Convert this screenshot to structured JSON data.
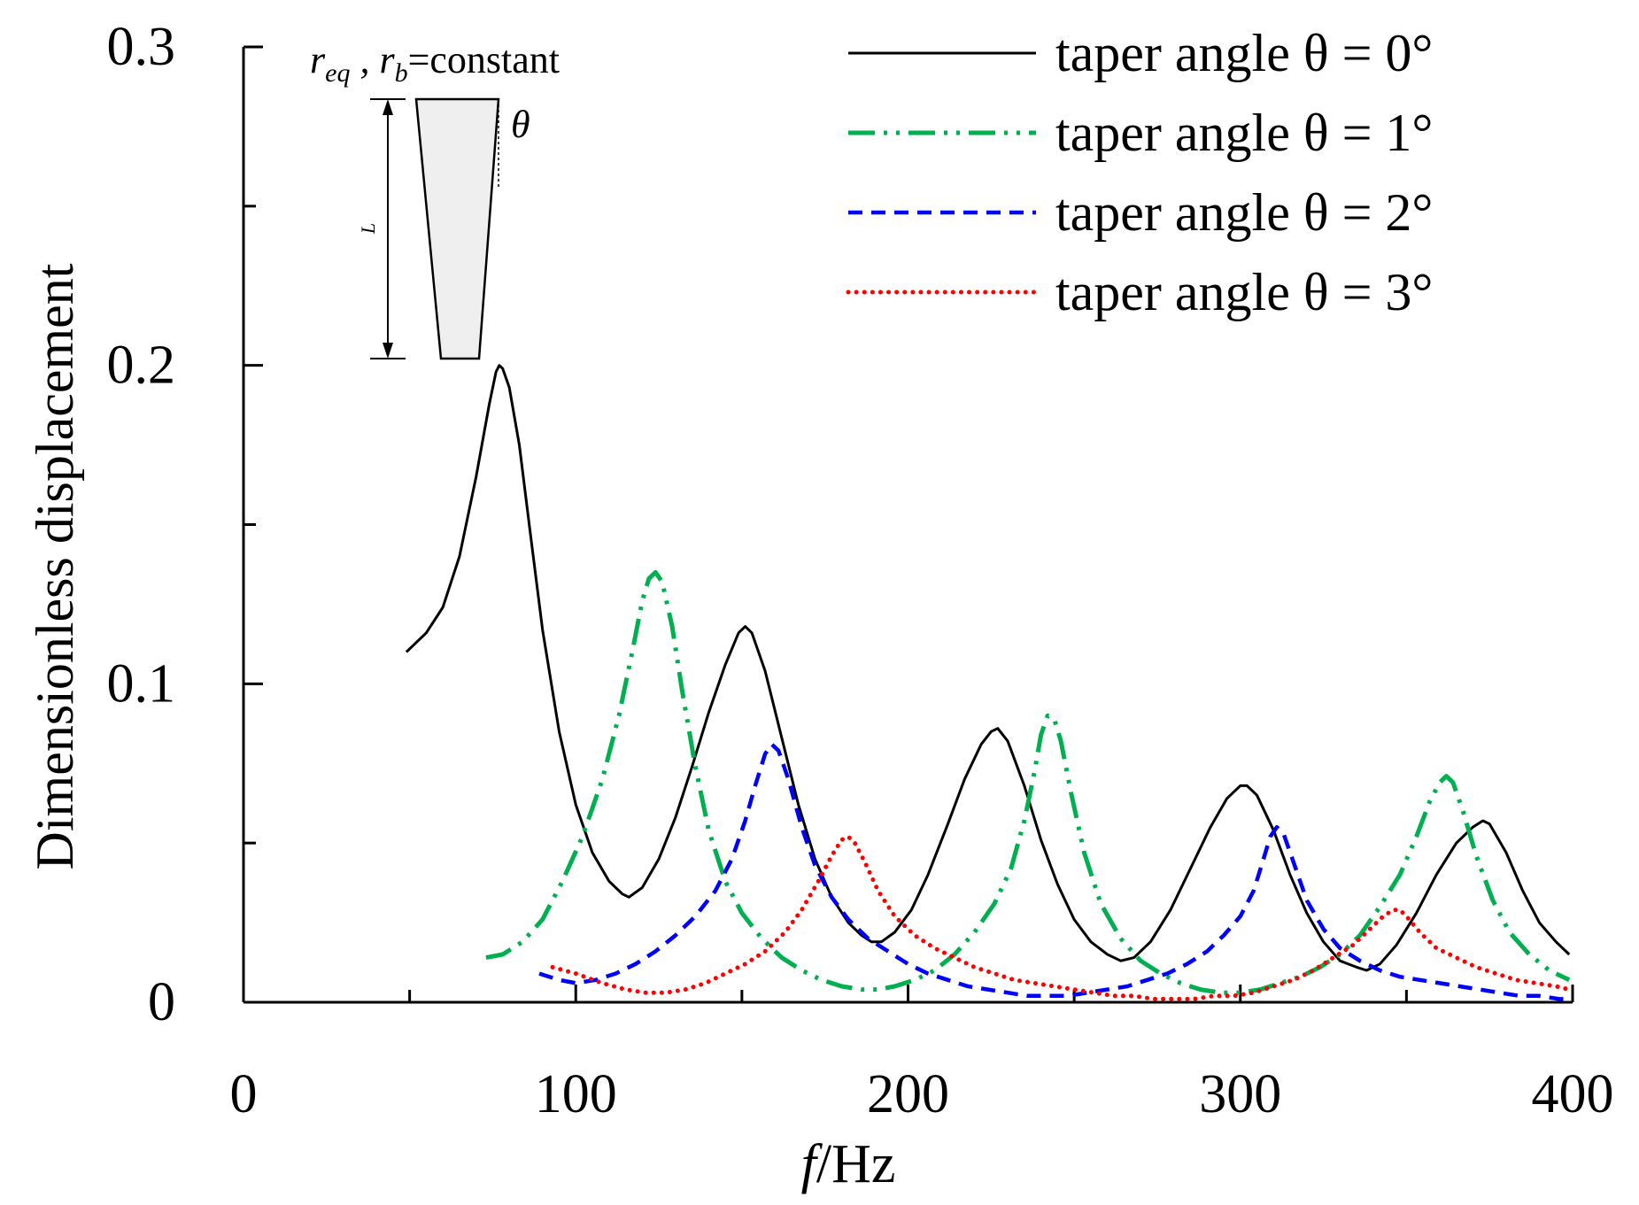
{
  "chart_data": {
    "type": "line",
    "title": "",
    "xlabel": {
      "italic": "f",
      "rest": "/Hz"
    },
    "ylabel": "Dimensionless displacement",
    "xlim": [
      0,
      400
    ],
    "ylim": [
      0,
      0.3
    ],
    "xticks": [
      0,
      100,
      200,
      300,
      400
    ],
    "xtick_labels": [
      "0",
      "100",
      "200",
      "300",
      "400"
    ],
    "yticks": [
      0,
      0.1,
      0.2,
      0.3
    ],
    "ytick_labels": [
      "0",
      "0.1",
      "0.2",
      "0.3"
    ],
    "grid": false,
    "legend_position": "top-right",
    "series": [
      {
        "name": "taper angle θ = 0°",
        "color": "#000000",
        "style": "solid",
        "points": [
          [
            49,
            0.11
          ],
          [
            55,
            0.116
          ],
          [
            60,
            0.124
          ],
          [
            65,
            0.14
          ],
          [
            70,
            0.165
          ],
          [
            74,
            0.188
          ],
          [
            76,
            0.198
          ],
          [
            77,
            0.2
          ],
          [
            78,
            0.199
          ],
          [
            80,
            0.193
          ],
          [
            83,
            0.175
          ],
          [
            86,
            0.15
          ],
          [
            90,
            0.117
          ],
          [
            95,
            0.085
          ],
          [
            100,
            0.062
          ],
          [
            105,
            0.047
          ],
          [
            110,
            0.038
          ],
          [
            114,
            0.034
          ],
          [
            116,
            0.033
          ],
          [
            120,
            0.036
          ],
          [
            125,
            0.045
          ],
          [
            130,
            0.058
          ],
          [
            135,
            0.074
          ],
          [
            140,
            0.091
          ],
          [
            145,
            0.106
          ],
          [
            149,
            0.116
          ],
          [
            151,
            0.118
          ],
          [
            153,
            0.116
          ],
          [
            157,
            0.104
          ],
          [
            162,
            0.083
          ],
          [
            167,
            0.062
          ],
          [
            172,
            0.045
          ],
          [
            177,
            0.033
          ],
          [
            182,
            0.025
          ],
          [
            186,
            0.021
          ],
          [
            189,
            0.019
          ],
          [
            192,
            0.019
          ],
          [
            196,
            0.022
          ],
          [
            201,
            0.029
          ],
          [
            206,
            0.04
          ],
          [
            212,
            0.056
          ],
          [
            217,
            0.07
          ],
          [
            222,
            0.081
          ],
          [
            225,
            0.085
          ],
          [
            227,
            0.086
          ],
          [
            230,
            0.082
          ],
          [
            235,
            0.068
          ],
          [
            240,
            0.051
          ],
          [
            245,
            0.037
          ],
          [
            250,
            0.026
          ],
          [
            255,
            0.019
          ],
          [
            260,
            0.015
          ],
          [
            264,
            0.013
          ],
          [
            268,
            0.014
          ],
          [
            273,
            0.019
          ],
          [
            279,
            0.029
          ],
          [
            285,
            0.042
          ],
          [
            291,
            0.055
          ],
          [
            296,
            0.064
          ],
          [
            300,
            0.068
          ],
          [
            302,
            0.068
          ],
          [
            305,
            0.065
          ],
          [
            310,
            0.054
          ],
          [
            315,
            0.04
          ],
          [
            320,
            0.028
          ],
          [
            325,
            0.019
          ],
          [
            330,
            0.013
          ],
          [
            335,
            0.011
          ],
          [
            338,
            0.01
          ],
          [
            342,
            0.012
          ],
          [
            347,
            0.018
          ],
          [
            353,
            0.028
          ],
          [
            359,
            0.04
          ],
          [
            365,
            0.05
          ],
          [
            370,
            0.055
          ],
          [
            373,
            0.057
          ],
          [
            375,
            0.056
          ],
          [
            380,
            0.047
          ],
          [
            385,
            0.035
          ],
          [
            390,
            0.025
          ],
          [
            395,
            0.019
          ],
          [
            399,
            0.015
          ]
        ]
      },
      {
        "name": "taper angle θ = 1°",
        "color": "#00b050",
        "style": "dashdotdot",
        "points": [
          [
            73,
            0.014
          ],
          [
            78,
            0.015
          ],
          [
            84,
            0.019
          ],
          [
            90,
            0.026
          ],
          [
            96,
            0.038
          ],
          [
            102,
            0.052
          ],
          [
            108,
            0.07
          ],
          [
            113,
            0.09
          ],
          [
            117,
            0.11
          ],
          [
            120,
            0.126
          ],
          [
            122,
            0.133
          ],
          [
            124,
            0.135
          ],
          [
            126,
            0.132
          ],
          [
            129,
            0.118
          ],
          [
            132,
            0.098
          ],
          [
            136,
            0.074
          ],
          [
            140,
            0.054
          ],
          [
            145,
            0.038
          ],
          [
            150,
            0.028
          ],
          [
            156,
            0.02
          ],
          [
            162,
            0.014
          ],
          [
            168,
            0.01
          ],
          [
            174,
            0.007
          ],
          [
            180,
            0.005
          ],
          [
            186,
            0.004
          ],
          [
            191,
            0.004
          ],
          [
            196,
            0.005
          ],
          [
            202,
            0.007
          ],
          [
            208,
            0.01
          ],
          [
            214,
            0.015
          ],
          [
            220,
            0.022
          ],
          [
            226,
            0.031
          ],
          [
            231,
            0.042
          ],
          [
            235,
            0.057
          ],
          [
            238,
            0.072
          ],
          [
            240,
            0.084
          ],
          [
            242,
            0.09
          ],
          [
            244,
            0.089
          ],
          [
            246,
            0.082
          ],
          [
            249,
            0.066
          ],
          [
            253,
            0.047
          ],
          [
            258,
            0.031
          ],
          [
            264,
            0.02
          ],
          [
            270,
            0.013
          ],
          [
            276,
            0.009
          ],
          [
            282,
            0.006
          ],
          [
            288,
            0.004
          ],
          [
            294,
            0.003
          ],
          [
            300,
            0.003
          ],
          [
            306,
            0.004
          ],
          [
            312,
            0.006
          ],
          [
            318,
            0.008
          ],
          [
            324,
            0.011
          ],
          [
            330,
            0.015
          ],
          [
            336,
            0.021
          ],
          [
            342,
            0.03
          ],
          [
            348,
            0.04
          ],
          [
            353,
            0.052
          ],
          [
            357,
            0.063
          ],
          [
            360,
            0.069
          ],
          [
            362,
            0.071
          ],
          [
            364,
            0.069
          ],
          [
            367,
            0.06
          ],
          [
            371,
            0.046
          ],
          [
            376,
            0.032
          ],
          [
            381,
            0.022
          ],
          [
            387,
            0.015
          ],
          [
            393,
            0.01
          ],
          [
            399,
            0.007
          ]
        ]
      },
      {
        "name": "taper angle θ = 2°",
        "color": "#0000ff",
        "style": "dashed",
        "points": [
          [
            89,
            0.009
          ],
          [
            95,
            0.007
          ],
          [
            100,
            0.006
          ],
          [
            106,
            0.007
          ],
          [
            112,
            0.009
          ],
          [
            118,
            0.012
          ],
          [
            124,
            0.016
          ],
          [
            130,
            0.021
          ],
          [
            136,
            0.027
          ],
          [
            142,
            0.035
          ],
          [
            147,
            0.045
          ],
          [
            151,
            0.057
          ],
          [
            154,
            0.068
          ],
          [
            157,
            0.078
          ],
          [
            159,
            0.081
          ],
          [
            161,
            0.079
          ],
          [
            164,
            0.07
          ],
          [
            168,
            0.055
          ],
          [
            172,
            0.043
          ],
          [
            177,
            0.033
          ],
          [
            182,
            0.026
          ],
          [
            188,
            0.02
          ],
          [
            194,
            0.016
          ],
          [
            200,
            0.012
          ],
          [
            206,
            0.009
          ],
          [
            212,
            0.007
          ],
          [
            218,
            0.005
          ],
          [
            224,
            0.004
          ],
          [
            230,
            0.003
          ],
          [
            236,
            0.002
          ],
          [
            242,
            0.002
          ],
          [
            248,
            0.002
          ],
          [
            254,
            0.003
          ],
          [
            260,
            0.004
          ],
          [
            266,
            0.005
          ],
          [
            272,
            0.007
          ],
          [
            278,
            0.009
          ],
          [
            284,
            0.012
          ],
          [
            290,
            0.016
          ],
          [
            295,
            0.021
          ],
          [
            300,
            0.027
          ],
          [
            304,
            0.035
          ],
          [
            307,
            0.045
          ],
          [
            309,
            0.052
          ],
          [
            311,
            0.055
          ],
          [
            313,
            0.053
          ],
          [
            316,
            0.044
          ],
          [
            320,
            0.032
          ],
          [
            325,
            0.023
          ],
          [
            330,
            0.017
          ],
          [
            336,
            0.013
          ],
          [
            342,
            0.01
          ],
          [
            348,
            0.008
          ],
          [
            354,
            0.007
          ],
          [
            360,
            0.006
          ],
          [
            366,
            0.005
          ],
          [
            372,
            0.004
          ],
          [
            378,
            0.003
          ],
          [
            384,
            0.002
          ],
          [
            390,
            0.002
          ],
          [
            396,
            0.001
          ],
          [
            399,
            0.001
          ]
        ]
      },
      {
        "name": "taper angle θ = 3°",
        "color": "#ff0000",
        "style": "dotted",
        "points": [
          [
            93,
            0.011
          ],
          [
            100,
            0.009
          ],
          [
            108,
            0.006
          ],
          [
            115,
            0.004
          ],
          [
            121,
            0.003
          ],
          [
            127,
            0.003
          ],
          [
            133,
            0.004
          ],
          [
            139,
            0.006
          ],
          [
            145,
            0.009
          ],
          [
            151,
            0.012
          ],
          [
            157,
            0.016
          ],
          [
            163,
            0.022
          ],
          [
            168,
            0.029
          ],
          [
            173,
            0.038
          ],
          [
            177,
            0.046
          ],
          [
            180,
            0.051
          ],
          [
            182,
            0.052
          ],
          [
            184,
            0.05
          ],
          [
            187,
            0.044
          ],
          [
            191,
            0.035
          ],
          [
            196,
            0.027
          ],
          [
            202,
            0.021
          ],
          [
            208,
            0.017
          ],
          [
            214,
            0.014
          ],
          [
            220,
            0.011
          ],
          [
            226,
            0.009
          ],
          [
            232,
            0.007
          ],
          [
            238,
            0.006
          ],
          [
            244,
            0.005
          ],
          [
            250,
            0.004
          ],
          [
            256,
            0.003
          ],
          [
            262,
            0.002
          ],
          [
            268,
            0.002
          ],
          [
            274,
            0.001
          ],
          [
            280,
            0.001
          ],
          [
            286,
            0.001
          ],
          [
            292,
            0.002
          ],
          [
            298,
            0.002
          ],
          [
            304,
            0.003
          ],
          [
            310,
            0.005
          ],
          [
            316,
            0.007
          ],
          [
            322,
            0.01
          ],
          [
            328,
            0.014
          ],
          [
            334,
            0.018
          ],
          [
            339,
            0.023
          ],
          [
            343,
            0.027
          ],
          [
            346,
            0.029
          ],
          [
            348,
            0.029
          ],
          [
            350,
            0.027
          ],
          [
            354,
            0.022
          ],
          [
            359,
            0.017
          ],
          [
            365,
            0.014
          ],
          [
            371,
            0.011
          ],
          [
            377,
            0.009
          ],
          [
            383,
            0.007
          ],
          [
            389,
            0.006
          ],
          [
            395,
            0.005
          ],
          [
            399,
            0.004
          ]
        ]
      }
    ],
    "inset": {
      "label_main": "r",
      "label_sub1": "eq",
      "label_sep": " , r",
      "label_sub2": "b",
      "label_tail": "=constant",
      "angle_symbol": "θ",
      "length_symbol": "L"
    }
  }
}
